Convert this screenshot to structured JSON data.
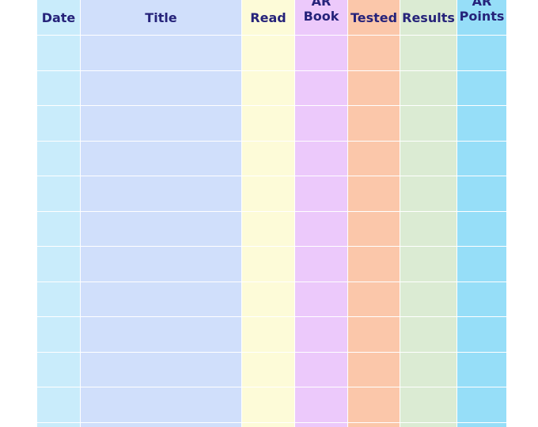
{
  "columns": [
    {
      "key": "date",
      "label": "Date",
      "color": "#c9ecfb"
    },
    {
      "key": "title",
      "label": "Title",
      "color": "#d0dffb"
    },
    {
      "key": "read",
      "label": "Read",
      "color": "#fdfbd8"
    },
    {
      "key": "book",
      "label": "AR\nBook",
      "color": "#ecc9fb"
    },
    {
      "key": "tested",
      "label": "Tested",
      "color": "#fbc7aa"
    },
    {
      "key": "results",
      "label": "Results",
      "color": "#dbebd3"
    },
    {
      "key": "points",
      "label": "AR\nPoints",
      "color": "#96def8"
    }
  ],
  "row_count": 11
}
